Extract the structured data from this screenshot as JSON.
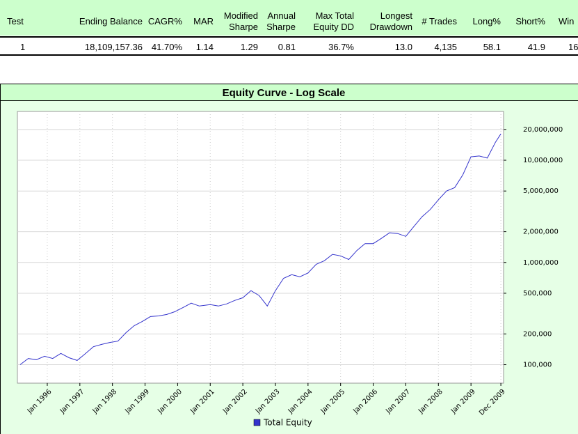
{
  "table": {
    "headers": [
      [
        "Test"
      ],
      [
        "Ending Balance"
      ],
      [
        "CAGR%"
      ],
      [
        "MAR"
      ],
      [
        "Modified",
        "Sharpe"
      ],
      [
        "Annual",
        "Sharpe"
      ],
      [
        "Max Total",
        "Equity DD"
      ],
      [
        "Longest",
        "Drawdown"
      ],
      [
        "# Trades"
      ],
      [
        "Long%"
      ],
      [
        "Short%"
      ],
      [
        "Win"
      ]
    ],
    "rows": [
      [
        "1",
        "18,109,157.36",
        "41.70%",
        "1.14",
        "1.29",
        "0.81",
        "36.7%",
        "13.0",
        "4,135",
        "58.1",
        "41.9",
        "16"
      ]
    ]
  },
  "chart_data": {
    "type": "line",
    "title": "Equity Curve - Log Scale",
    "log_scale": true,
    "grid": true,
    "x": [
      "1995-03",
      "1995-06",
      "1995-09",
      "1995-12",
      "1996-03",
      "1996-06",
      "1996-09",
      "1996-12",
      "1997-03",
      "1997-06",
      "1997-09",
      "1997-12",
      "1998-03",
      "1998-06",
      "1998-09",
      "1998-12",
      "1999-03",
      "1999-06",
      "1999-09",
      "1999-12",
      "2000-03",
      "2000-06",
      "2000-09",
      "2001-01",
      "2001-04",
      "2001-07",
      "2001-10",
      "2002-01",
      "2002-04",
      "2002-07",
      "2002-10",
      "2003-01",
      "2003-04",
      "2003-07",
      "2003-10",
      "2004-01",
      "2004-04",
      "2004-07",
      "2004-10",
      "2005-01",
      "2005-04",
      "2005-07",
      "2005-10",
      "2006-01",
      "2006-04",
      "2006-07",
      "2006-10",
      "2007-01",
      "2007-04",
      "2007-07",
      "2007-10",
      "2008-01",
      "2008-04",
      "2008-07",
      "2008-10",
      "2009-01",
      "2009-04",
      "2009-07",
      "2009-10",
      "2009-12"
    ],
    "series": [
      {
        "name": "Total Equity",
        "color": "#3333cc",
        "values": [
          100000,
          115000,
          112000,
          121000,
          115000,
          129000,
          117000,
          110000,
          128000,
          150000,
          158000,
          165000,
          170000,
          206000,
          241000,
          265000,
          296000,
          300000,
          310000,
          330000,
          363000,
          400000,
          375000,
          387000,
          375000,
          393000,
          425000,
          452000,
          530000,
          475000,
          375000,
          530000,
          700000,
          760000,
          725000,
          790000,
          960000,
          1040000,
          1200000,
          1160000,
          1070000,
          1310000,
          1530000,
          1530000,
          1720000,
          1950000,
          1920000,
          1800000,
          2250000,
          2800000,
          3300000,
          4100000,
          5000000,
          5400000,
          7200000,
          10800000,
          11000000,
          10500000,
          15000000,
          18100000
        ]
      }
    ],
    "xlim": [
      "1995-02",
      "2010-01"
    ],
    "xticks": [
      {
        "value": "1996-01",
        "label": "Jan 1996"
      },
      {
        "value": "1997-01",
        "label": "Jan 1997"
      },
      {
        "value": "1998-01",
        "label": "Jan 1998"
      },
      {
        "value": "1999-01",
        "label": "Jan 1999"
      },
      {
        "value": "2000-01",
        "label": "Jan 2000"
      },
      {
        "value": "2001-01",
        "label": "Jan 2001"
      },
      {
        "value": "2002-01",
        "label": "Jan 2002"
      },
      {
        "value": "2003-01",
        "label": "Jan 2003"
      },
      {
        "value": "2004-01",
        "label": "Jan 2004"
      },
      {
        "value": "2005-01",
        "label": "Jan 2005"
      },
      {
        "value": "2006-01",
        "label": "Jan 2006"
      },
      {
        "value": "2007-01",
        "label": "Jan 2007"
      },
      {
        "value": "2008-01",
        "label": "Jan 2008"
      },
      {
        "value": "2009-01",
        "label": "Jan 2009"
      },
      {
        "value": "2009-12",
        "label": "Dec 2009"
      }
    ],
    "ylim": [
      66000,
      30000000
    ],
    "yticks": [
      {
        "value": 100000,
        "label": "100,000"
      },
      {
        "value": 200000,
        "label": "200,000"
      },
      {
        "value": 500000,
        "label": "500,000"
      },
      {
        "value": 1000000,
        "label": "1,000,000"
      },
      {
        "value": 2000000,
        "label": "2,000,000"
      },
      {
        "value": 5000000,
        "label": "5,000,000"
      },
      {
        "value": 10000000,
        "label": "10,000,000"
      },
      {
        "value": 20000000,
        "label": "20,000,000"
      }
    ],
    "legend": "bottom"
  }
}
